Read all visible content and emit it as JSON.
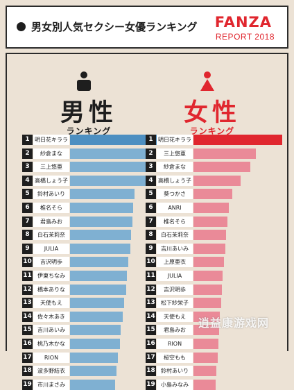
{
  "header": {
    "title": "男女別人気セクシー女優ランキング",
    "logo": "FANZA",
    "logo_sub": "REPORT 2018"
  },
  "watermark": "逍益康游戏网",
  "colors": {
    "male_bar": "#7fb0d2",
    "male_bar_top": "#4d8fc1",
    "female_bar": "#ea8a98",
    "female_bar_top": "#e0262e",
    "brand": "#e0262e"
  },
  "chart_data": [
    {
      "type": "bar",
      "orientation": "horizontal",
      "title": "男性",
      "subtitle": "ランキング",
      "icon": "male-person-icon",
      "categories": [
        "明日花キララ",
        "紗倉まな",
        "三上悠亜",
        "高橋しょう子",
        "鈴村あいり",
        "椎名そら",
        "君島みお",
        "白石茉莉奈",
        "JULIA",
        "吉沢明歩",
        "伊東ちなみ",
        "橋本ありな",
        "天使もえ",
        "佐々木あき",
        "吉川あいみ",
        "桃乃木かな",
        "RION",
        "波多野結衣",
        "市川まさみ"
      ],
      "ranks": [
        1,
        2,
        3,
        4,
        5,
        6,
        7,
        8,
        9,
        10,
        11,
        12,
        13,
        14,
        15,
        16,
        17,
        18,
        19
      ],
      "values": [
        100,
        95,
        92,
        90,
        73,
        71,
        70,
        69,
        68,
        66,
        64,
        63,
        61,
        59,
        57,
        56,
        54,
        52,
        51
      ],
      "grid": false
    },
    {
      "type": "bar",
      "orientation": "horizontal",
      "title": "女性",
      "subtitle": "ランキング",
      "icon": "female-person-icon",
      "categories": [
        "明日花キララ",
        "三上悠亜",
        "紗倉まな",
        "高橋しょう子",
        "葵つかさ",
        "ANRI",
        "椎名そら",
        "白石茉莉奈",
        "吉川あいみ",
        "上原亜衣",
        "JULIA",
        "吉沢明歩",
        "松下紗栄子",
        "天使もえ",
        "君島みお",
        "RION",
        "桜空もも",
        "鈴村あいり",
        "小島みなみ"
      ],
      "ranks": [
        1,
        2,
        3,
        4,
        5,
        6,
        7,
        8,
        9,
        10,
        11,
        12,
        13,
        14,
        15,
        16,
        17,
        18,
        19
      ],
      "values": [
        100,
        70,
        64,
        53,
        44,
        40,
        38,
        37,
        36,
        34,
        33,
        32,
        31,
        30,
        29,
        28,
        27,
        26,
        25
      ],
      "grid": false
    }
  ]
}
